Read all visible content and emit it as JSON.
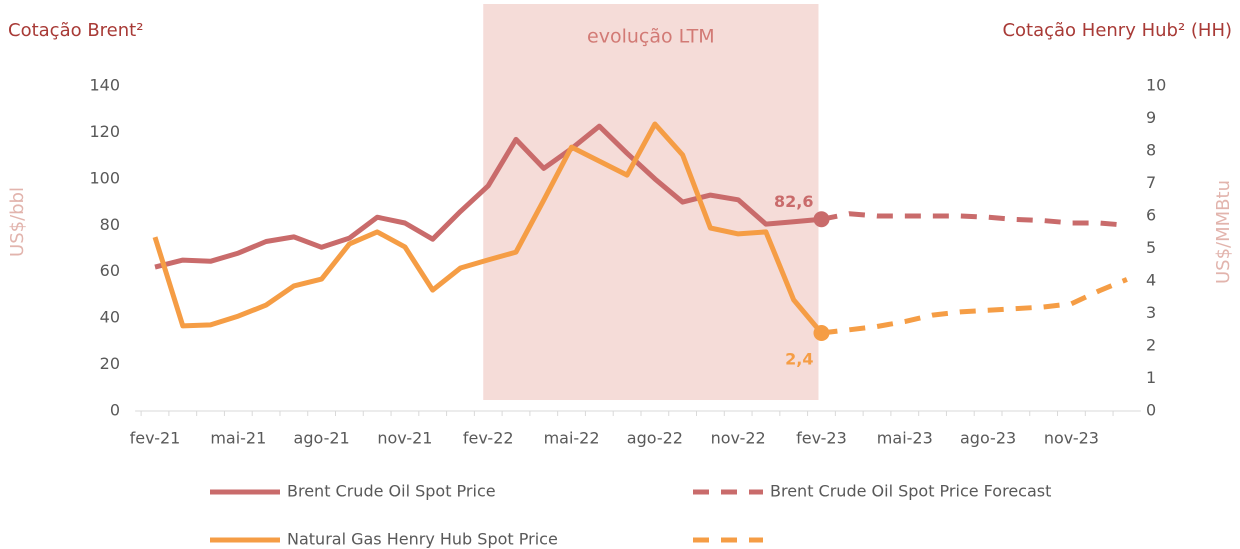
{
  "chart_data": {
    "type": "line",
    "title_left": "Cotação Brent²",
    "title_right": "Cotação Henry Hub² (HH)",
    "ylabel": "US$/bbl",
    "y2label": "US$/MMBtu",
    "annotation": {
      "text": "evolução LTM",
      "start": "fev-22",
      "end": "fev-23",
      "color": "#f5dcd8"
    },
    "categories": [
      "fev-21",
      null,
      null,
      "mai-21",
      null,
      null,
      "ago-21",
      null,
      null,
      "nov-21",
      null,
      null,
      "fev-22",
      null,
      null,
      "mai-22",
      null,
      null,
      "ago-22",
      null,
      null,
      "nov-22",
      null,
      null,
      "fev-23",
      null,
      null,
      "mai-23",
      null,
      null,
      "ago-23",
      null,
      null,
      "nov-23",
      null,
      null
    ],
    "ylim": [
      0,
      140
    ],
    "yticks": [
      0,
      20,
      40,
      60,
      80,
      100,
      120,
      140
    ],
    "y2lim": [
      0,
      10
    ],
    "y2ticks": [
      0,
      1,
      2,
      3,
      4,
      5,
      6,
      7,
      8,
      9,
      10
    ],
    "series": [
      {
        "name": "Brent Crude Oil Spot Price",
        "color": "#c96b6b",
        "dashed": false,
        "values": [
          62,
          65,
          64.5,
          68,
          73,
          75,
          70.5,
          74.5,
          83.5,
          81,
          74,
          86,
          97,
          117,
          104.5,
          113,
          122.7,
          111,
          100,
          90,
          93,
          91,
          80.5,
          81.5,
          82.6,
          null,
          null,
          null,
          null,
          null,
          null,
          null,
          null,
          null,
          null,
          null
        ],
        "value_labels": [
          null,
          null,
          null,
          null,
          null,
          null,
          null,
          null,
          null,
          null,
          null,
          null,
          null,
          null,
          null,
          null,
          null,
          null,
          null,
          null,
          null,
          null,
          null,
          null,
          "82,6",
          null,
          null,
          null,
          null,
          null,
          null,
          null,
          null,
          null,
          null,
          null
        ]
      },
      {
        "name": "Brent Crude Oil Spot Price Forecast",
        "color": "#c96b6b",
        "dashed": true,
        "values": [
          null,
          null,
          null,
          null,
          null,
          null,
          null,
          null,
          null,
          null,
          null,
          null,
          null,
          null,
          null,
          null,
          null,
          null,
          null,
          null,
          null,
          null,
          null,
          null,
          82.6,
          85,
          84,
          84,
          84,
          84,
          83.5,
          82.5,
          82,
          81,
          81,
          80
        ]
      },
      {
        "name": "Natural Gas Henry Hub Spot Price",
        "color": "#f59d45",
        "dashed": false,
        "axis": "y2",
        "values": [
          5.35,
          2.62,
          2.65,
          2.92,
          3.26,
          3.85,
          4.06,
          5.14,
          5.51,
          5.05,
          3.72,
          4.4,
          4.65,
          4.89,
          6.49,
          8.12,
          7.69,
          7.26,
          8.83,
          7.88,
          5.63,
          5.45,
          5.51,
          3.42,
          2.4,
          null,
          null,
          null,
          null,
          null,
          null,
          null,
          null,
          null,
          null,
          null
        ],
        "value_labels": [
          null,
          null,
          null,
          null,
          null,
          null,
          null,
          null,
          null,
          null,
          null,
          null,
          null,
          null,
          null,
          null,
          null,
          null,
          null,
          null,
          null,
          null,
          null,
          null,
          "2,4",
          null,
          null,
          null,
          null,
          null,
          null,
          null,
          null,
          null,
          null,
          null
        ]
      },
      {
        "color": "#f59d45",
        "dashed": true,
        "axis": "y2",
        "values": [
          null,
          null,
          null,
          null,
          null,
          null,
          null,
          null,
          null,
          null,
          null,
          null,
          null,
          null,
          null,
          null,
          null,
          null,
          null,
          null,
          null,
          null,
          null,
          null,
          2.4,
          2.5,
          2.6,
          2.75,
          2.95,
          3.05,
          3.1,
          3.15,
          3.2,
          3.3,
          3.7,
          4.05
        ]
      }
    ]
  }
}
